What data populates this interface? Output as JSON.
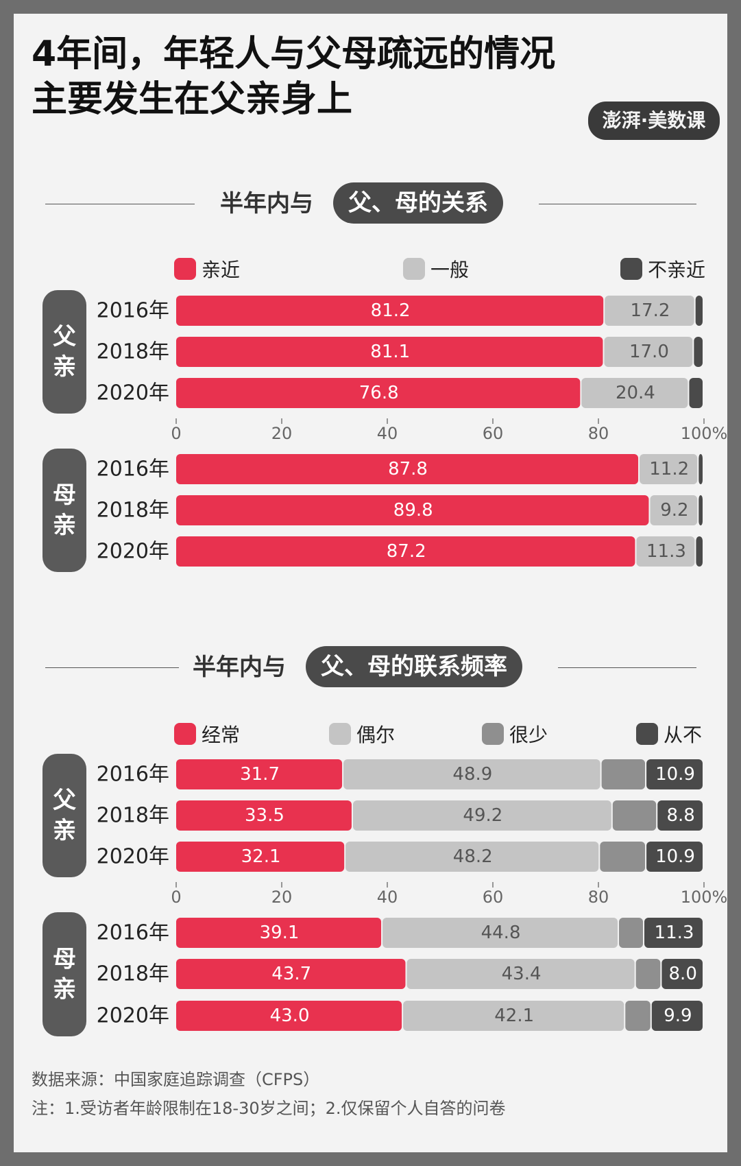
{
  "title_lines": [
    "4年间，年轻人与父母疏远的情况",
    "主要发生在父亲身上"
  ],
  "logo_text": "澎湃·美数课",
  "colors": {
    "red": "#e8324f",
    "light": "#c4c4c4",
    "mid": "#8f8f8f",
    "dark": "#4a4a4a",
    "pill": "#5a5a5a",
    "background": "#f3f3f3",
    "border": "#6e6e6e"
  },
  "chart_data": [
    {
      "type": "bar",
      "orientation": "horizontal",
      "stacked": true,
      "title_prefix": "半年内与",
      "title_highlight": "父、母的关系",
      "legend": [
        "亲近",
        "一般",
        "不亲近"
      ],
      "xlim": [
        0,
        100
      ],
      "x_ticks": [
        "0",
        "20",
        "40",
        "60",
        "80",
        "100%"
      ],
      "groups": [
        {
          "label": "父亲",
          "rows": [
            {
              "year": "2016年",
              "values": [
                81.2,
                17.2,
                1.6
              ],
              "labels": [
                "81.2",
                "17.2",
                ""
              ]
            },
            {
              "year": "2018年",
              "values": [
                81.1,
                17.0,
                1.9
              ],
              "labels": [
                "81.1",
                "17.0",
                ""
              ]
            },
            {
              "year": "2020年",
              "values": [
                76.8,
                20.4,
                2.8
              ],
              "labels": [
                "76.8",
                "20.4",
                ""
              ]
            }
          ]
        },
        {
          "label": "母亲",
          "rows": [
            {
              "year": "2016年",
              "values": [
                87.8,
                11.2,
                1.0
              ],
              "labels": [
                "87.8",
                "11.2",
                ""
              ]
            },
            {
              "year": "2018年",
              "values": [
                89.8,
                9.2,
                1.0
              ],
              "labels": [
                "89.8",
                "9.2",
                ""
              ]
            },
            {
              "year": "2020年",
              "values": [
                87.2,
                11.3,
                1.5
              ],
              "labels": [
                "87.2",
                "11.3",
                ""
              ]
            }
          ]
        }
      ]
    },
    {
      "type": "bar",
      "orientation": "horizontal",
      "stacked": true,
      "title_prefix": "半年内与",
      "title_highlight": "父、母的联系频率",
      "legend": [
        "经常",
        "偶尔",
        "很少",
        "从不"
      ],
      "xlim": [
        0,
        100
      ],
      "x_ticks": [
        "0",
        "20",
        "40",
        "60",
        "80",
        "100%"
      ],
      "groups": [
        {
          "label": "父亲",
          "rows": [
            {
              "year": "2016年",
              "values": [
                31.7,
                48.9,
                8.5,
                10.9
              ],
              "labels": [
                "31.7",
                "48.9",
                "",
                "10.9"
              ]
            },
            {
              "year": "2018年",
              "values": [
                33.5,
                49.2,
                8.5,
                8.8
              ],
              "labels": [
                "33.5",
                "49.2",
                "",
                "8.8"
              ]
            },
            {
              "year": "2020年",
              "values": [
                32.1,
                48.2,
                8.8,
                10.9
              ],
              "labels": [
                "32.1",
                "48.2",
                "",
                "10.9"
              ]
            }
          ]
        },
        {
          "label": "母亲",
          "rows": [
            {
              "year": "2016年",
              "values": [
                39.1,
                44.8,
                4.8,
                11.3
              ],
              "labels": [
                "39.1",
                "44.8",
                "",
                "11.3"
              ]
            },
            {
              "year": "2018年",
              "values": [
                43.7,
                43.4,
                4.9,
                8.0
              ],
              "labels": [
                "43.7",
                "43.4",
                "",
                "8.0"
              ]
            },
            {
              "year": "2020年",
              "values": [
                43.0,
                42.1,
                5.0,
                9.9
              ],
              "labels": [
                "43.0",
                "42.1",
                "",
                "9.9"
              ]
            }
          ]
        }
      ]
    }
  ],
  "footer": {
    "source": "数据来源：中国家庭追踪调查（CFPS）",
    "note": "注：1.受访者年龄限制在18-30岁之间；2.仅保留个人自答的问卷"
  }
}
